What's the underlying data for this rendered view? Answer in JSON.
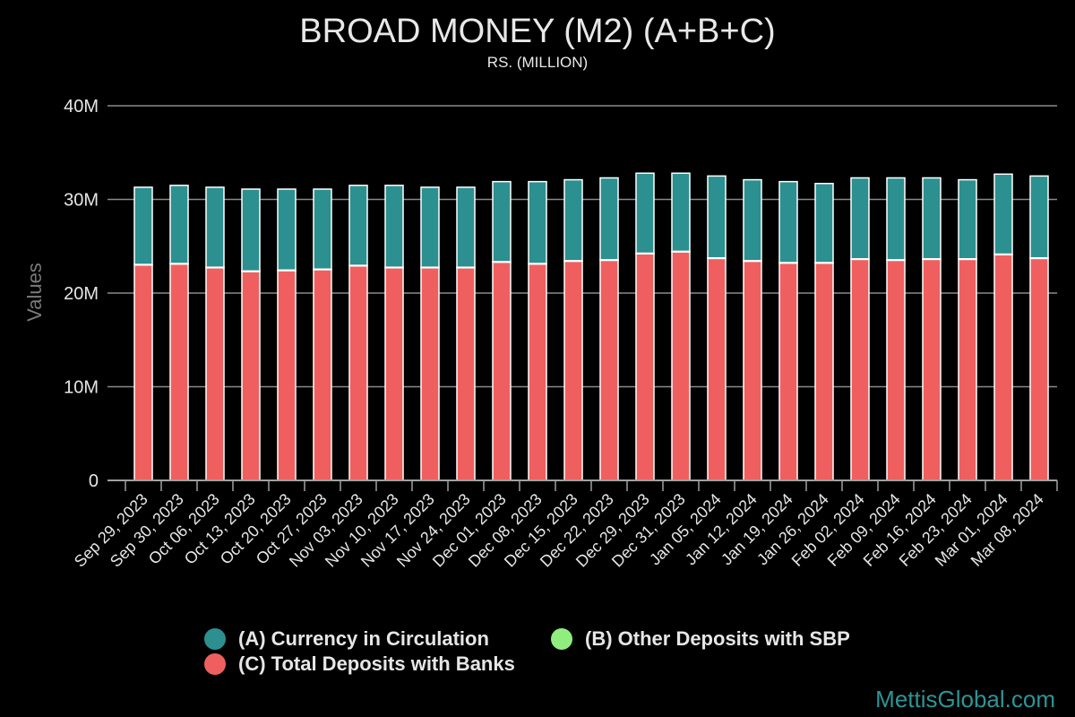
{
  "chart_data": {
    "type": "bar",
    "stacked": true,
    "title": "BROAD MONEY (M2) (A+B+C)",
    "subtitle": "RS. (MILLION)",
    "xlabel": "",
    "ylabel": "Values",
    "ylim": [
      0,
      40000000
    ],
    "yticks": [
      0,
      10000000,
      20000000,
      30000000,
      40000000
    ],
    "ytick_labels": [
      "0",
      "10M",
      "20M",
      "30M",
      "40M"
    ],
    "grid": true,
    "legend_position": "bottom",
    "categories": [
      "Sep 29, 2023",
      "Sep 30, 2023",
      "Oct 06, 2023",
      "Oct 13, 2023",
      "Oct 20, 2023",
      "Oct 27, 2023",
      "Nov 03, 2023",
      "Nov 10, 2023",
      "Nov 17, 2023",
      "Nov 24, 2023",
      "Dec 01, 2023",
      "Dec 08, 2023",
      "Dec 15, 2023",
      "Dec 22, 2023",
      "Dec 29, 2023",
      "Dec 31, 2023",
      "Jan 05, 2024",
      "Jan 12, 2024",
      "Jan 19, 2024",
      "Jan 26, 2024",
      "Feb 02, 2024",
      "Feb 09, 2024",
      "Feb 16, 2024",
      "Feb 23, 2024",
      "Mar 01, 2024",
      "Mar 08, 2024"
    ],
    "series": [
      {
        "name": "(C) Total Deposits with Banks",
        "color": "#f05f5f",
        "values": [
          23000000,
          23100000,
          22700000,
          22300000,
          22400000,
          22500000,
          22900000,
          22700000,
          22700000,
          22700000,
          23300000,
          23100000,
          23400000,
          23500000,
          24200000,
          24400000,
          23700000,
          23400000,
          23200000,
          23200000,
          23600000,
          23500000,
          23600000,
          23600000,
          24100000,
          23700000
        ]
      },
      {
        "name": "(B) Other Deposits with SBP",
        "color": "#90ee7e",
        "values": [
          60000,
          60000,
          60000,
          60000,
          60000,
          60000,
          60000,
          60000,
          60000,
          60000,
          60000,
          60000,
          60000,
          60000,
          60000,
          60000,
          60000,
          60000,
          60000,
          60000,
          60000,
          60000,
          60000,
          60000,
          60000,
          60000
        ]
      },
      {
        "name": "(A) Currency in Circulation",
        "color": "#2b908f",
        "values": [
          8240000,
          8340000,
          8540000,
          8740000,
          8640000,
          8540000,
          8540000,
          8740000,
          8540000,
          8540000,
          8540000,
          8740000,
          8640000,
          8740000,
          8540000,
          8340000,
          8740000,
          8640000,
          8640000,
          8440000,
          8640000,
          8740000,
          8640000,
          8440000,
          8540000,
          8740000
        ]
      }
    ]
  },
  "legend": [
    {
      "label": "(A) Currency in Circulation",
      "color": "#2b908f"
    },
    {
      "label": "(B) Other Deposits with SBP",
      "color": "#90ee7e"
    },
    {
      "label": "(C) Total Deposits with Banks",
      "color": "#f05f5f"
    }
  ],
  "watermark": "MettisGlobal.com"
}
